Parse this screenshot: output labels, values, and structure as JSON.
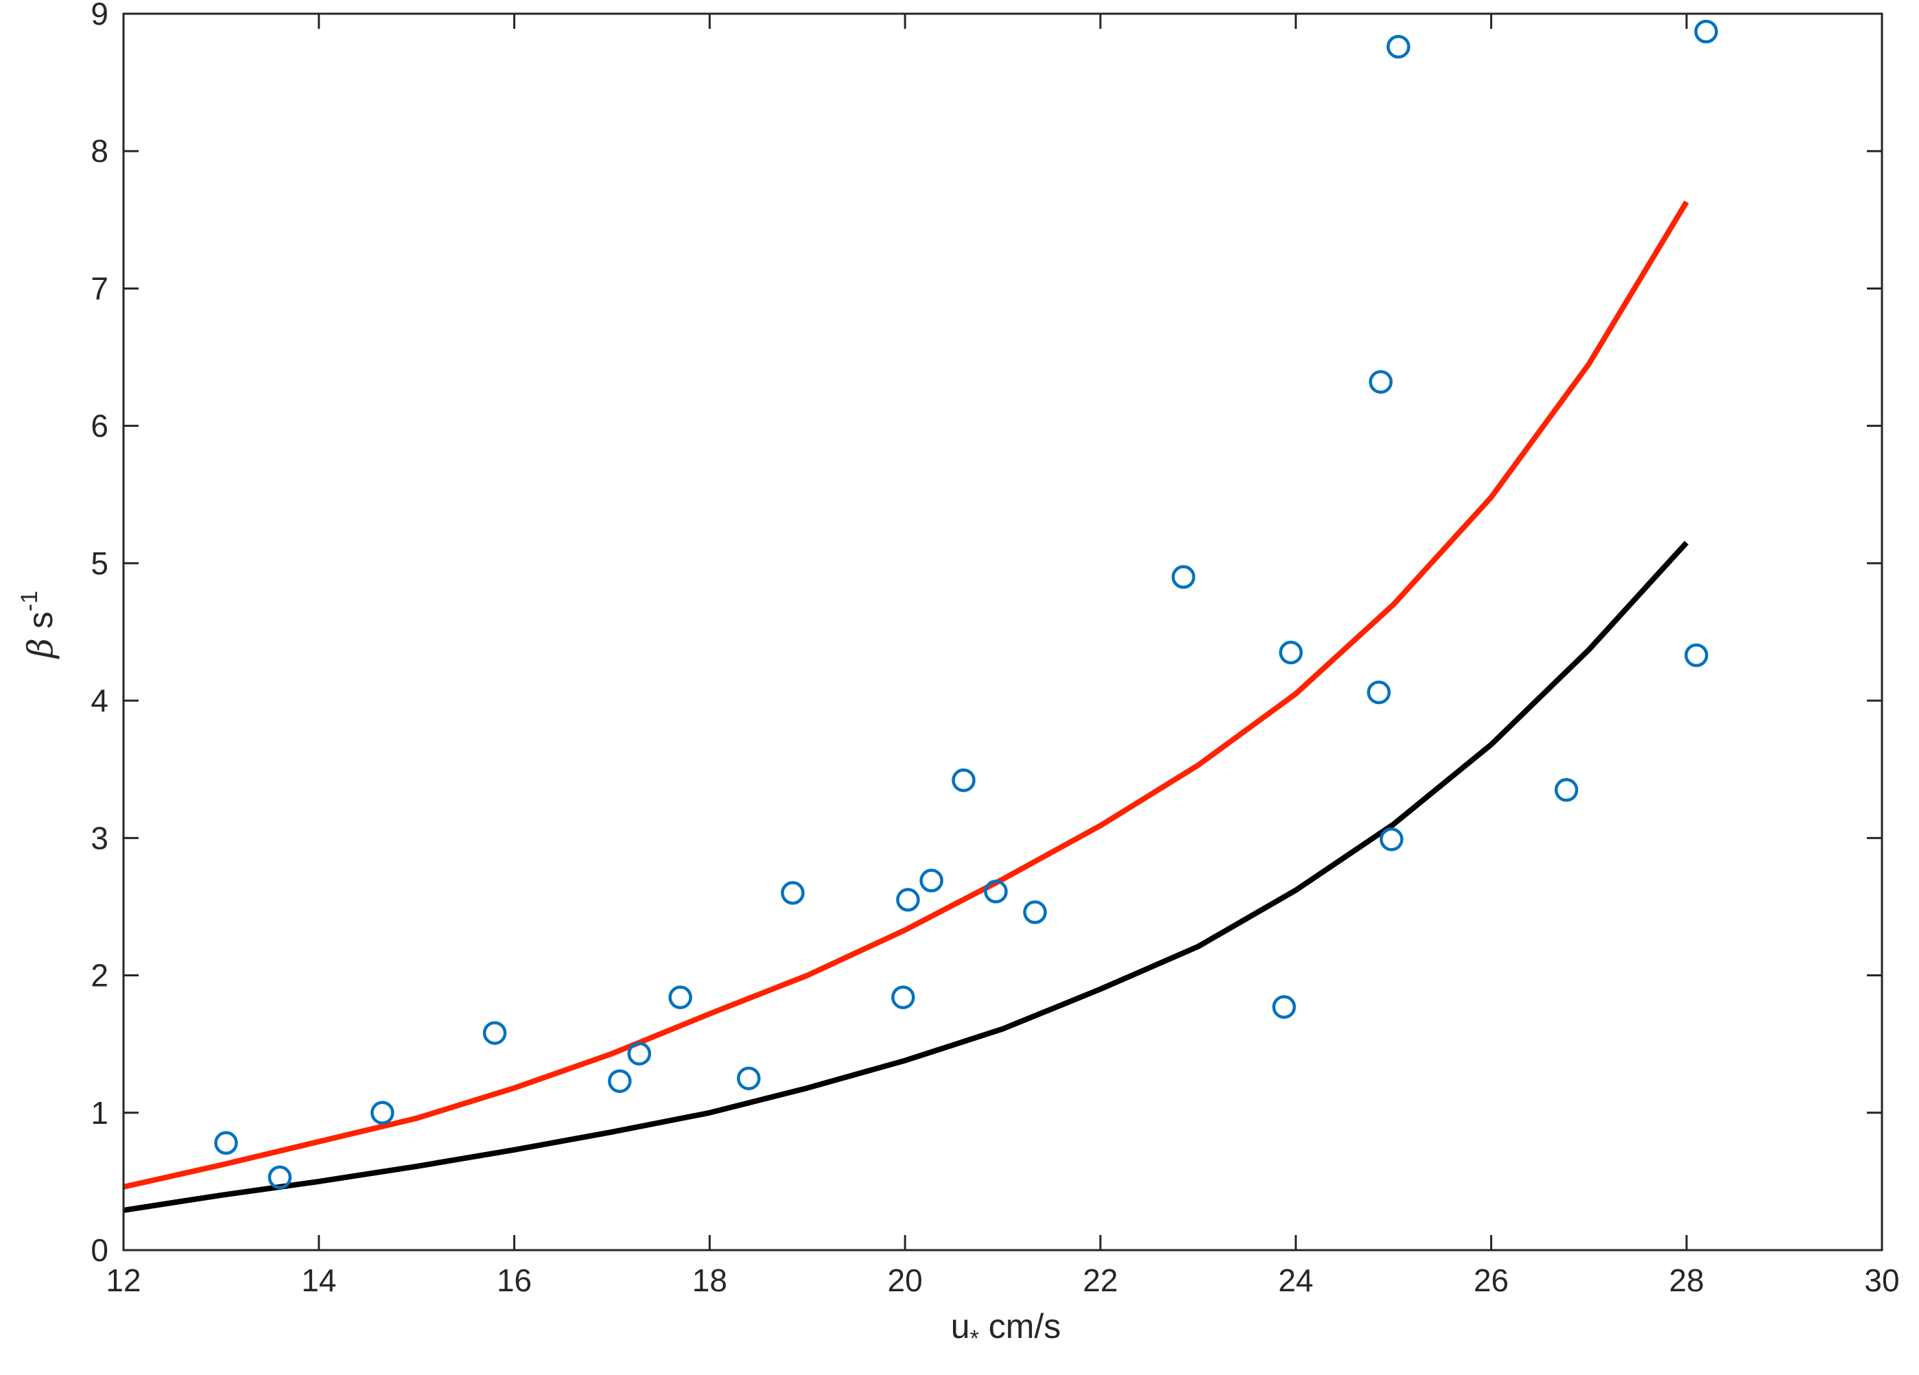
{
  "chart_data": {
    "type": "scatter",
    "title": "",
    "xlabel": {
      "main": "u",
      "subscript": "*",
      "unit": " cm/s"
    },
    "ylabel": {
      "symbol": "β",
      "unit": " s",
      "superscript": "-1"
    },
    "xlim": [
      12,
      30
    ],
    "ylim": [
      0,
      9
    ],
    "xticks": [
      12,
      14,
      16,
      18,
      20,
      22,
      24,
      26,
      28,
      30
    ],
    "yticks": [
      0,
      1,
      2,
      3,
      4,
      5,
      6,
      7,
      8,
      9
    ],
    "grid": false,
    "legend": "none",
    "colors": {
      "points": "#0072BD",
      "red_line": "#FF2200",
      "black_line": "#000000",
      "axis": "#262626"
    },
    "points": {
      "x": [
        13.05,
        13.6,
        14.65,
        15.8,
        17.08,
        17.28,
        17.7,
        18.4,
        18.85,
        19.98,
        20.03,
        20.27,
        20.6,
        20.93,
        21.33,
        22.85,
        23.88,
        23.95,
        24.85,
        24.87,
        24.98,
        25.05,
        26.77,
        28.1,
        28.2
      ],
      "y": [
        0.78,
        0.53,
        1.0,
        1.58,
        1.23,
        1.43,
        1.84,
        1.25,
        2.6,
        1.84,
        2.55,
        2.69,
        3.42,
        2.61,
        2.46,
        4.9,
        1.77,
        4.35,
        4.06,
        6.32,
        2.99,
        8.76,
        3.35,
        4.33,
        8.87
      ]
    },
    "series": [
      {
        "style": "red",
        "x": [
          12,
          13,
          14,
          15,
          16,
          17,
          18,
          19,
          20,
          21,
          22,
          23,
          24,
          25,
          26,
          27,
          28
        ],
        "values": [
          0.46,
          0.62,
          0.79,
          0.96,
          1.18,
          1.43,
          1.72,
          2.0,
          2.33,
          2.7,
          3.09,
          3.53,
          4.05,
          4.7,
          5.48,
          6.45,
          7.63
        ]
      },
      {
        "style": "black",
        "x": [
          12,
          13,
          14,
          15,
          16,
          17,
          18,
          19,
          20,
          21,
          22,
          23,
          24,
          25,
          26,
          27,
          28
        ],
        "values": [
          0.29,
          0.4,
          0.5,
          0.61,
          0.73,
          0.86,
          1.0,
          1.18,
          1.38,
          1.61,
          1.9,
          2.21,
          2.62,
          3.1,
          3.68,
          4.37,
          5.15
        ]
      }
    ]
  }
}
